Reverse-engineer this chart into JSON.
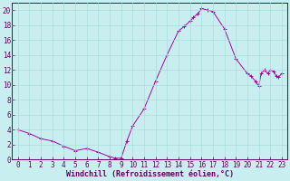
{
  "xlabel": "Windchill (Refroidissement éolien,°C)",
  "background_color": "#c8eef0",
  "line_color": "#aa00aa",
  "marker_color": "#aa00aa",
  "xlim": [
    -0.5,
    23.5
  ],
  "ylim": [
    0,
    21
  ],
  "yticks": [
    0,
    2,
    4,
    6,
    8,
    10,
    12,
    14,
    16,
    18,
    20
  ],
  "xticks": [
    0,
    1,
    2,
    3,
    4,
    5,
    6,
    7,
    8,
    9,
    10,
    11,
    12,
    13,
    14,
    15,
    16,
    17,
    18,
    19,
    20,
    21,
    22,
    23
  ],
  "grid_color": "#aadddd",
  "font_color": "#660066",
  "font_size": 5.5,
  "xlabel_fontsize": 6.0,
  "x": [
    0,
    1,
    2,
    3,
    4,
    5,
    6,
    7,
    8,
    8.5,
    9,
    9.5,
    10,
    11,
    12,
    13,
    14,
    14.5,
    15,
    15.3,
    15.7,
    16,
    16.5,
    17,
    18,
    19,
    20,
    20.3,
    20.7,
    21,
    21.2,
    21.5,
    21.8,
    22,
    22.3,
    22.5,
    22.7,
    23
  ],
  "y": [
    4.0,
    3.5,
    2.8,
    2.5,
    1.8,
    1.2,
    1.5,
    1.0,
    0.4,
    0.2,
    0.2,
    2.5,
    4.5,
    6.8,
    10.5,
    14.0,
    17.2,
    17.8,
    18.5,
    19.0,
    19.5,
    20.2,
    20.0,
    19.8,
    17.5,
    13.5,
    11.5,
    11.2,
    10.5,
    9.8,
    11.5,
    12.0,
    11.5,
    12.0,
    11.8,
    11.2,
    11.0,
    11.5
  ]
}
